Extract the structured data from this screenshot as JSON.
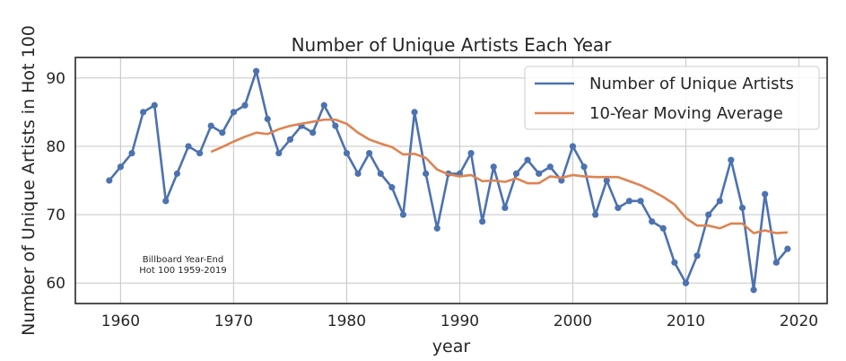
{
  "chart_data": {
    "type": "line",
    "title": "Number of Unique Artists Each Year",
    "xlabel": "year",
    "ylabel": "Number of Unique Artists in Hot 100",
    "xlim": [
      1956,
      2022.5
    ],
    "ylim": [
      57,
      93
    ],
    "xticks": [
      1960,
      1970,
      1980,
      1990,
      2000,
      2010,
      2020
    ],
    "yticks": [
      60,
      70,
      80,
      90
    ],
    "grid": true,
    "legend_position": "top-right",
    "annotation": [
      "Billboard Year-End",
      "Hot 100 1959-2019"
    ],
    "series": [
      {
        "name": "Number of Unique Artists",
        "color": "#4c72b0",
        "markers": true,
        "x": [
          1959,
          1960,
          1961,
          1962,
          1963,
          1964,
          1965,
          1966,
          1967,
          1968,
          1969,
          1970,
          1971,
          1972,
          1973,
          1974,
          1975,
          1976,
          1977,
          1978,
          1979,
          1980,
          1981,
          1982,
          1983,
          1984,
          1985,
          1986,
          1987,
          1988,
          1989,
          1990,
          1991,
          1992,
          1993,
          1994,
          1995,
          1996,
          1997,
          1998,
          1999,
          2000,
          2001,
          2002,
          2003,
          2004,
          2005,
          2006,
          2007,
          2008,
          2009,
          2010,
          2011,
          2012,
          2013,
          2014,
          2015,
          2016,
          2017,
          2018,
          2019
        ],
        "values": [
          75,
          77,
          79,
          85,
          86,
          72,
          76,
          80,
          79,
          83,
          82,
          85,
          86,
          91,
          84,
          79,
          81,
          83,
          82,
          86,
          83,
          79,
          76,
          79,
          76,
          74,
          70,
          85,
          76,
          68,
          76,
          76,
          79,
          69,
          77,
          71,
          76,
          78,
          76,
          77,
          75,
          80,
          77,
          70,
          75,
          71,
          72,
          72,
          69,
          68,
          63,
          60,
          64,
          70,
          72,
          78,
          71,
          59,
          73,
          63,
          65
        ]
      },
      {
        "name": "10-Year Moving Average",
        "color": "#dd8452",
        "markers": false,
        "x": [
          1968,
          1969,
          1970,
          1971,
          1972,
          1973,
          1974,
          1975,
          1976,
          1977,
          1978,
          1979,
          1980,
          1981,
          1982,
          1983,
          1984,
          1985,
          1986,
          1987,
          1988,
          1989,
          1990,
          1991,
          1992,
          1993,
          1994,
          1995,
          1996,
          1997,
          1998,
          1999,
          2000,
          2001,
          2002,
          2003,
          2004,
          2005,
          2006,
          2007,
          2008,
          2009,
          2010,
          2011,
          2012,
          2013,
          2014,
          2015,
          2016,
          2017,
          2018,
          2019
        ],
        "values": [
          79.2,
          79.9,
          80.7,
          81.4,
          82.0,
          81.8,
          82.5,
          83.0,
          83.3,
          83.6,
          83.9,
          83.9,
          83.3,
          82.0,
          81.0,
          80.4,
          79.9,
          78.8,
          78.9,
          78.3,
          76.6,
          75.9,
          75.6,
          75.8,
          74.9,
          75.0,
          74.8,
          75.3,
          74.6,
          74.6,
          75.6,
          75.4,
          75.8,
          75.6,
          75.5,
          75.5,
          75.5,
          74.9,
          74.3,
          73.5,
          72.6,
          71.5,
          69.5,
          68.4,
          68.4,
          68.0,
          68.7,
          68.7,
          67.3,
          67.7,
          67.3,
          67.4
        ]
      }
    ]
  }
}
